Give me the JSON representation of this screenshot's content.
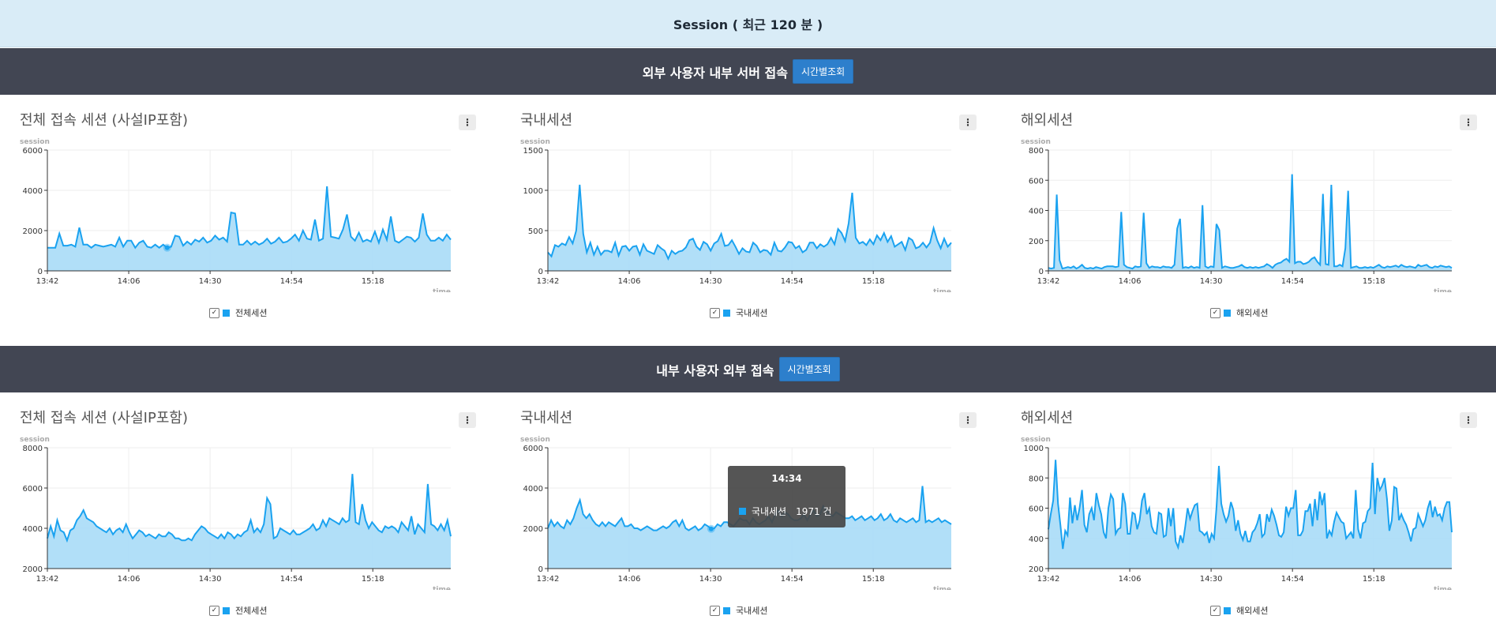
{
  "header": {
    "title": "Session ( 최근 120 분 )"
  },
  "sections": [
    {
      "title": "외부 사용자 내부 서버 접속",
      "button": "시간별조회"
    },
    {
      "title": "내부 사용자 외부 접속",
      "button": "시간별조회"
    }
  ],
  "menu_glyph": "⋮",
  "tooltip": {
    "time": "14:34",
    "series": "국내세션",
    "value": "1971 건"
  },
  "colors": {
    "line": "#1aa2f0",
    "fill": "#a9dcf7",
    "header": "#d9ecf7",
    "bar": "#424653",
    "button": "#2d7fcc"
  },
  "chart_data": [
    {
      "type": "area",
      "title": "전체 접속 세션 (사설IP포함)",
      "ylabel": "session",
      "xlabel": "time",
      "legend": "전체세션",
      "ylim": [
        0,
        6000
      ],
      "yticks": [
        "0",
        "2000",
        "4000",
        "6000"
      ],
      "xticks": [
        "13:42",
        "14:06",
        "14:30",
        "14:54",
        "15:18"
      ],
      "x_range": [
        "13:42",
        "15:41"
      ],
      "values": [
        1150,
        1150,
        1150,
        1850,
        1250,
        1250,
        1300,
        1200,
        2150,
        1300,
        1300,
        1150,
        1300,
        1250,
        1200,
        1250,
        1300,
        1200,
        1650,
        1200,
        1500,
        1500,
        1150,
        1400,
        1500,
        1200,
        1150,
        1300,
        1150,
        1300,
        1150,
        1200,
        1750,
        1700,
        1250,
        1450,
        1300,
        1550,
        1450,
        1650,
        1400,
        1500,
        1750,
        1550,
        1650,
        1450,
        2900,
        2850,
        1300,
        1300,
        1500,
        1300,
        1450,
        1300,
        1400,
        1600,
        1350,
        1450,
        1650,
        1400,
        1450,
        1600,
        1800,
        1500,
        2000,
        1600,
        1550,
        2550,
        1500,
        1600,
        4200,
        1700,
        1650,
        1600,
        2050,
        2800,
        1700,
        1500,
        1900,
        1450,
        1550,
        1450,
        1950,
        1400,
        2050,
        1550,
        2700,
        1500,
        1400,
        1550,
        1700,
        1650,
        1450,
        1650,
        2850,
        1800,
        1500,
        1500,
        1650,
        1500,
        1800,
        1550
      ],
      "highlight_index": 30
    },
    {
      "type": "area",
      "title": "국내세션",
      "ylabel": "session",
      "xlabel": "time",
      "legend": "국내세션",
      "ylim": [
        0,
        1500
      ],
      "yticks": [
        "0",
        "500",
        "1000",
        "1500"
      ],
      "xticks": [
        "13:42",
        "14:06",
        "14:30",
        "14:54",
        "15:18"
      ],
      "x_range": [
        "13:42",
        "15:41"
      ],
      "values": [
        230,
        180,
        320,
        300,
        340,
        320,
        420,
        340,
        500,
        1070,
        460,
        230,
        350,
        200,
        300,
        200,
        250,
        250,
        230,
        350,
        190,
        300,
        310,
        250,
        300,
        310,
        200,
        330,
        250,
        230,
        210,
        320,
        280,
        250,
        150,
        250,
        210,
        240,
        250,
        290,
        380,
        400,
        300,
        260,
        360,
        330,
        250,
        340,
        370,
        460,
        310,
        320,
        380,
        300,
        210,
        280,
        240,
        230,
        350,
        310,
        230,
        260,
        250,
        200,
        350,
        250,
        240,
        290,
        360,
        350,
        280,
        310,
        230,
        260,
        350,
        350,
        280,
        330,
        300,
        330,
        410,
        330,
        520,
        470,
        370,
        590,
        970,
        410,
        340,
        360,
        320,
        390,
        330,
        440,
        380,
        470,
        360,
        430,
        300,
        330,
        360,
        260,
        410,
        380,
        280,
        300,
        350,
        290,
        350,
        530,
        380,
        280,
        400,
        300,
        350
      ],
      "highlight_index": null
    },
    {
      "type": "area",
      "title": "해외세션",
      "ylabel": "session",
      "xlabel": "time",
      "legend": "해외세션",
      "ylim": [
        0,
        800
      ],
      "yticks": [
        "0",
        "200",
        "400",
        "600",
        "800"
      ],
      "xticks": [
        "13:42",
        "14:06",
        "14:30",
        "14:54",
        "15:18"
      ],
      "x_range": [
        "13:42",
        "15:41"
      ],
      "values": [
        20,
        15,
        20,
        505,
        70,
        15,
        20,
        25,
        20,
        30,
        15,
        25,
        40,
        20,
        15,
        20,
        15,
        25,
        20,
        15,
        25,
        30,
        30,
        30,
        25,
        30,
        390,
        40,
        25,
        20,
        15,
        30,
        25,
        30,
        385,
        50,
        20,
        30,
        25,
        25,
        20,
        30,
        25,
        25,
        20,
        40,
        280,
        345,
        20,
        25,
        20,
        30,
        20,
        25,
        20,
        435,
        30,
        20,
        30,
        25,
        310,
        270,
        20,
        30,
        25,
        20,
        20,
        25,
        30,
        40,
        25,
        20,
        25,
        20,
        25,
        20,
        25,
        30,
        45,
        35,
        20,
        40,
        50,
        55,
        70,
        80,
        60,
        640,
        50,
        60,
        60,
        45,
        50,
        60,
        80,
        90,
        60,
        40,
        510,
        45,
        40,
        570,
        30,
        30,
        40,
        30,
        150,
        530,
        20,
        25,
        30,
        20,
        20,
        25,
        20,
        25,
        20,
        30,
        40,
        25,
        20,
        30,
        25,
        30,
        35,
        25,
        40,
        30,
        25,
        30,
        25,
        20,
        40,
        30,
        35,
        40,
        25,
        20,
        30,
        25,
        35,
        30,
        25,
        30,
        20
      ],
      "highlight_index": null
    },
    {
      "type": "area",
      "title": "전체 접속 세션 (사설IP포함)",
      "ylabel": "session",
      "xlabel": "time",
      "legend": "전체세션",
      "ylim": [
        2000,
        8000
      ],
      "yticks": [
        "2000",
        "4000",
        "6000",
        "8000"
      ],
      "xticks": [
        "13:42",
        "14:06",
        "14:30",
        "14:54",
        "15:18"
      ],
      "x_range": [
        "13:42",
        "15:41"
      ],
      "values": [
        3500,
        4100,
        3600,
        4400,
        3900,
        3800,
        3400,
        3900,
        4000,
        4400,
        4600,
        4900,
        4500,
        4400,
        4300,
        4100,
        4000,
        3900,
        3800,
        4000,
        3700,
        3900,
        4000,
        3800,
        4200,
        3800,
        3500,
        3700,
        3900,
        3800,
        3600,
        3700,
        3600,
        3500,
        3700,
        3600,
        3600,
        3800,
        3700,
        3500,
        3500,
        3400,
        3400,
        3500,
        3400,
        3700,
        3900,
        4100,
        4000,
        3800,
        3700,
        3600,
        3500,
        3700,
        3500,
        3800,
        3700,
        3500,
        3700,
        3600,
        3800,
        3900,
        4400,
        3800,
        4000,
        3800,
        4200,
        5500,
        5200,
        3500,
        3600,
        4000,
        3900,
        3800,
        3700,
        3900,
        3700,
        3700,
        3800,
        3900,
        4000,
        4200,
        3900,
        4000,
        4400,
        4100,
        4500,
        4400,
        4300,
        4200,
        4500,
        4300,
        4400,
        6700,
        4300,
        4200,
        5200,
        4400,
        4000,
        4300,
        4100,
        3900,
        3800,
        4100,
        4000,
        4100,
        4000,
        3800,
        4300,
        4100,
        3900,
        4600,
        3700,
        4200,
        4000,
        3800,
        6200,
        4200,
        4100,
        3900,
        4200,
        3900,
        4400,
        3600
      ],
      "highlight_index": null
    },
    {
      "type": "area",
      "title": "국내세션",
      "ylabel": "session",
      "xlabel": "time",
      "legend": "국내세션",
      "ylim": [
        0,
        6000
      ],
      "yticks": [
        "0",
        "2000",
        "4000",
        "6000"
      ],
      "xticks": [
        "13:42",
        "14:06",
        "14:30",
        "14:54",
        "15:18"
      ],
      "x_range": [
        "13:42",
        "15:41"
      ],
      "values": [
        2000,
        2400,
        2100,
        2300,
        2100,
        2000,
        2400,
        2200,
        2500,
        3000,
        3400,
        2700,
        2500,
        2700,
        2400,
        2200,
        2100,
        2300,
        2100,
        2300,
        2200,
        2100,
        2300,
        2500,
        2100,
        2100,
        2200,
        2000,
        2000,
        1900,
        2000,
        2100,
        2000,
        1900,
        1900,
        2000,
        2100,
        2000,
        2100,
        2300,
        2400,
        2100,
        2400,
        2000,
        1900,
        2000,
        2100,
        1900,
        2000,
        2200,
        2100,
        1971,
        2000,
        2200,
        2100,
        2300,
        2300,
        2200,
        2100,
        2300,
        2500,
        2400,
        2400,
        2200,
        2500,
        2300,
        2200,
        2300,
        2400,
        2600,
        2300,
        2700,
        2900,
        2600,
        2800,
        2700,
        2500,
        2400,
        2400,
        2500,
        2700,
        2400,
        2700,
        2900,
        2600,
        2700,
        3100,
        2900,
        2700,
        2600,
        2800,
        2700,
        2600,
        2500,
        2500,
        2600,
        2400,
        2500,
        2600,
        2400,
        2500,
        2600,
        2400,
        2500,
        2700,
        2400,
        2500,
        2700,
        2400,
        2300,
        2500,
        2400,
        2300,
        2400,
        2500,
        2300,
        2400,
        4100,
        2300,
        2400,
        2300,
        2400,
        2500,
        2300,
        2400,
        2300,
        2200
      ],
      "highlight_index": 51
    },
    {
      "type": "area",
      "title": "해외세션",
      "ylabel": "session",
      "xlabel": "time",
      "legend": "해외세션",
      "ylim": [
        200,
        1000
      ],
      "yticks": [
        "200",
        "400",
        "600",
        "800",
        "1000"
      ],
      "xticks": [
        "13:42",
        "14:06",
        "14:30",
        "14:54",
        "15:18"
      ],
      "x_range": [
        "13:42",
        "15:41"
      ],
      "values": [
        460,
        560,
        650,
        920,
        630,
        490,
        330,
        450,
        420,
        670,
        500,
        620,
        520,
        600,
        720,
        490,
        440,
        560,
        600,
        520,
        700,
        620,
        560,
        440,
        400,
        600,
        690,
        660,
        430,
        460,
        470,
        700,
        630,
        430,
        430,
        570,
        560,
        460,
        520,
        650,
        700,
        560,
        600,
        480,
        440,
        430,
        570,
        560,
        410,
        420,
        600,
        480,
        600,
        380,
        340,
        420,
        370,
        480,
        600,
        530,
        580,
        620,
        630,
        450,
        440,
        420,
        440,
        370,
        430,
        400,
        600,
        880,
        630,
        560,
        510,
        550,
        640,
        590,
        450,
        520,
        430,
        390,
        450,
        380,
        380,
        440,
        460,
        500,
        560,
        410,
        430,
        560,
        510,
        590,
        550,
        490,
        420,
        410,
        440,
        610,
        550,
        600,
        600,
        720,
        420,
        420,
        450,
        580,
        580,
        630,
        480,
        660,
        520,
        710,
        620,
        700,
        400,
        450,
        420,
        510,
        570,
        540,
        510,
        500,
        400,
        420,
        440,
        400,
        720,
        460,
        400,
        500,
        510,
        580,
        600,
        900,
        560,
        800,
        720,
        750,
        800,
        660,
        450,
        520,
        740,
        730,
        520,
        560,
        520,
        490,
        440,
        380,
        460,
        470,
        560,
        520,
        480,
        520,
        600,
        650,
        540,
        610,
        550,
        560,
        520,
        600,
        640,
        640,
        440
      ],
      "highlight_index": null
    }
  ]
}
